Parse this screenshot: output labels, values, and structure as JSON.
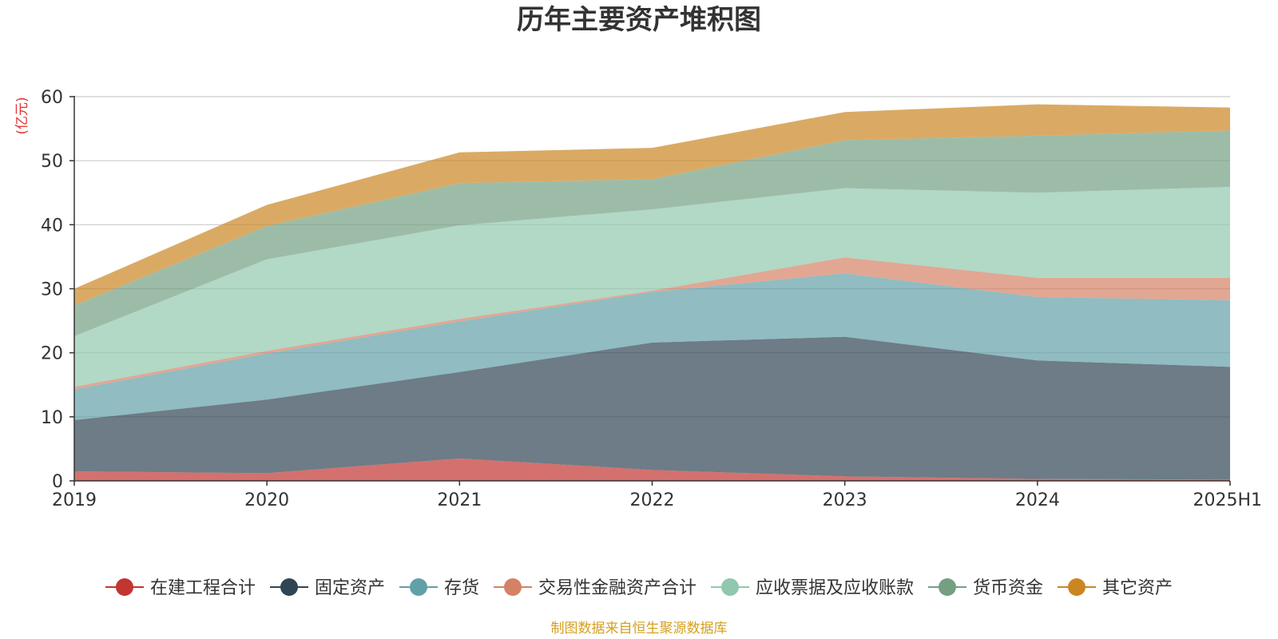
{
  "chart_data": {
    "type": "area",
    "stacked": true,
    "title": "历年主要资产堆积图",
    "ylabel": "(亿元)",
    "xlabel": "",
    "categories": [
      "2019",
      "2020",
      "2021",
      "2022",
      "2023",
      "2024",
      "2025H1"
    ],
    "ylim": [
      0,
      60
    ],
    "yticks": [
      0,
      10,
      20,
      30,
      40,
      50,
      60
    ],
    "grid": true,
    "legend_position": "bottom",
    "series": [
      {
        "name": "在建工程合计",
        "color": "#c23531",
        "values": [
          1.5,
          1.2,
          3.5,
          1.7,
          0.7,
          0.3,
          0.2
        ]
      },
      {
        "name": "固定资产",
        "color": "#2f4554",
        "values": [
          8.0,
          11.5,
          13.5,
          19.9,
          21.8,
          18.5,
          17.6
        ]
      },
      {
        "name": "存货",
        "color": "#61a0a8",
        "values": [
          4.8,
          7.2,
          7.9,
          7.9,
          9.9,
          9.9,
          10.4
        ]
      },
      {
        "name": "交易性金融资产合计",
        "color": "#d48265",
        "values": [
          0.4,
          0.4,
          0.4,
          0.2,
          2.5,
          3.0,
          3.5
        ]
      },
      {
        "name": "应收票据及应收账款",
        "color": "#91c7ae",
        "values": [
          7.9,
          14.3,
          14.6,
          12.7,
          10.8,
          13.3,
          14.2
        ]
      },
      {
        "name": "货币资金",
        "color": "#749f83",
        "values": [
          4.8,
          5.2,
          6.6,
          4.7,
          7.5,
          8.9,
          8.8
        ]
      },
      {
        "name": "其它资产",
        "color": "#ca8622",
        "values": [
          2.6,
          3.3,
          4.8,
          4.9,
          4.4,
          4.9,
          3.6
        ]
      }
    ]
  },
  "source_note": "制图数据来自恒生聚源数据库",
  "colors": {
    "axis_unit": "#e03030",
    "source_note": "#d4a020",
    "grid": "#cccccc",
    "axis": "#333333"
  }
}
